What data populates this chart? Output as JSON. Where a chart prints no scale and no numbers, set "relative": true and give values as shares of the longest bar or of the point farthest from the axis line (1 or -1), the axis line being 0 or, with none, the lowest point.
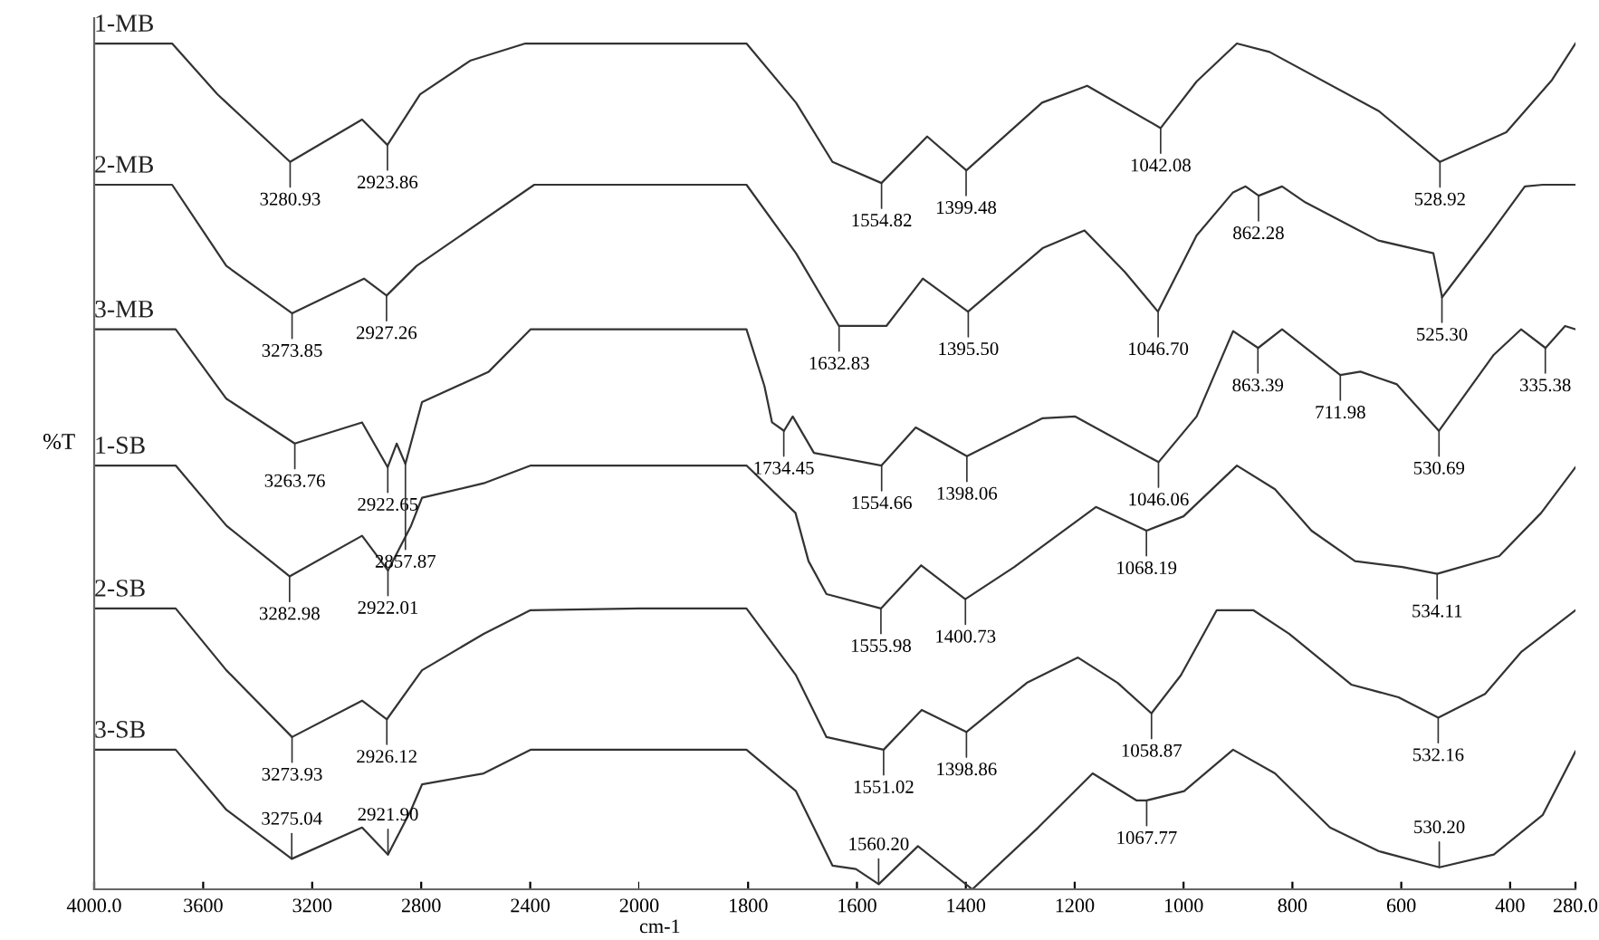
{
  "chart_data": [
    {
      "type": "line",
      "relative": true,
      "ylabel": "%T",
      "xlim": [
        4000,
        2000
      ],
      "xticks": [
        {
          "value": 4000,
          "label": "4000.0"
        },
        3600,
        3200,
        2800,
        2400,
        2000
      ],
      "grid": false,
      "legend": false,
      "marker": "none",
      "line_style": "solid",
      "series": [
        {
          "name": "1-MB",
          "color": "#333333",
          "x": [
            4000,
            3714,
            3548,
            3281,
            3017,
            2924,
            2804,
            2618,
            2418,
            2000
          ],
          "values": [
            1.0,
            1.0,
            0.94,
            0.86,
            0.91,
            0.88,
            0.94,
            0.98,
            1.0,
            1.0
          ]
        },
        {
          "name": "2-MB",
          "color": "#333333",
          "x": [
            4000,
            3714,
            3515,
            3274,
            3010,
            2927,
            2817,
            2385,
            2000
          ],
          "values": [
            0.833,
            0.833,
            0.737,
            0.681,
            0.722,
            0.702,
            0.737,
            0.833,
            0.833
          ]
        },
        {
          "name": "3-MB",
          "color": "#333333",
          "x": [
            4000,
            3701,
            3515,
            3264,
            3017,
            2923,
            2890,
            2858,
            2797,
            2552,
            2399,
            2000
          ],
          "values": [
            0.662,
            0.662,
            0.58,
            0.527,
            0.552,
            0.499,
            0.527,
            0.503,
            0.576,
            0.612,
            0.662,
            0.662
          ]
        },
        {
          "name": "1-SB",
          "color": "#333333",
          "x": [
            4000,
            3701,
            3515,
            3283,
            3017,
            2922,
            2837,
            2797,
            2571,
            2398,
            2000
          ],
          "values": [
            0.501,
            0.501,
            0.43,
            0.37,
            0.418,
            0.377,
            0.43,
            0.463,
            0.48,
            0.501,
            0.501
          ]
        },
        {
          "name": "2-SB",
          "color": "#333333",
          "x": [
            4000,
            3701,
            3515,
            3274,
            3017,
            2926,
            2797,
            2571,
            2399,
            2000
          ],
          "values": [
            0.332,
            0.332,
            0.259,
            0.18,
            0.223,
            0.201,
            0.259,
            0.302,
            0.33,
            0.332
          ]
        },
        {
          "name": "3-SB",
          "color": "#333333",
          "x": [
            4000,
            3701,
            3515,
            3275,
            3017,
            2922,
            2837,
            2797,
            2571,
            2399,
            2000
          ],
          "values": [
            0.165,
            0.165,
            0.094,
            0.036,
            0.073,
            0.041,
            0.094,
            0.124,
            0.137,
            0.165,
            0.165
          ]
        }
      ],
      "annotations": [
        {
          "text": "3280.93",
          "x": 3280.93,
          "y": 0.86
        },
        {
          "text": "2923.86",
          "x": 2923.86,
          "y": 0.88
        },
        {
          "text": "3273.85",
          "x": 3273.85,
          "y": 0.681
        },
        {
          "text": "2927.26",
          "x": 2927.26,
          "y": 0.702
        },
        {
          "text": "3263.76",
          "x": 3263.76,
          "y": 0.527
        },
        {
          "text": "2922.65",
          "x": 2922.65,
          "y": 0.499
        },
        {
          "text": "2857.87",
          "x": 2857.87,
          "y": 0.503
        },
        {
          "text": "3282.98",
          "x": 3282.98,
          "y": 0.37
        },
        {
          "text": "2922.01",
          "x": 2922.01,
          "y": 0.377
        },
        {
          "text": "3273.93",
          "x": 3273.93,
          "y": 0.18
        },
        {
          "text": "2926.12",
          "x": 2926.12,
          "y": 0.201
        },
        {
          "text": "3275.04",
          "x": 3275.04,
          "y": 0.036
        },
        {
          "text": "2921.90",
          "x": 2921.9,
          "y": 0.041
        }
      ]
    },
    {
      "type": "line",
      "relative": true,
      "xlabel": "cm-1",
      "xlim": [
        2000,
        280
      ],
      "xticks": [
        1800,
        1600,
        1400,
        1200,
        1000,
        800,
        600,
        400,
        {
          "value": 280,
          "label": "280.0"
        }
      ],
      "grid": false,
      "legend": false,
      "marker": "none",
      "line_style": "solid",
      "series": [
        {
          "color": "#333333",
          "x": [
            2000,
            1803,
            1712,
            1645,
            1555,
            1471,
            1399,
            1260,
            1177,
            1042,
            976,
            902,
            842,
            641,
            529,
            407,
            323,
            280
          ],
          "values": [
            1.0,
            1.0,
            0.93,
            0.86,
            0.835,
            0.89,
            0.85,
            0.93,
            0.95,
            0.9,
            0.955,
            1.0,
            0.99,
            0.92,
            0.86,
            0.895,
            0.957,
            1.0
          ]
        },
        {
          "color": "#333333",
          "x": [
            2000,
            1803,
            1712,
            1633,
            1546,
            1479,
            1396,
            1259,
            1182,
            1108,
            1047,
            976,
            909,
            886,
            862,
            819,
            776,
            642,
            541,
            525,
            440,
            373,
            340,
            280
          ],
          "values": [
            0.833,
            0.833,
            0.752,
            0.666,
            0.666,
            0.722,
            0.683,
            0.758,
            0.779,
            0.73,
            0.683,
            0.773,
            0.824,
            0.831,
            0.82,
            0.831,
            0.812,
            0.767,
            0.752,
            0.7,
            0.772,
            0.831,
            0.833,
            0.833
          ]
        },
        {
          "color": "#333333",
          "x": [
            2000,
            1803,
            1770,
            1756,
            1734,
            1718,
            1679,
            1555,
            1492,
            1398,
            1259,
            1199,
            1046,
            976,
            909,
            863,
            819,
            712,
            675,
            608,
            531,
            430,
            380,
            335,
            299,
            280
          ],
          "values": [
            0.662,
            0.662,
            0.595,
            0.552,
            0.542,
            0.559,
            0.516,
            0.501,
            0.546,
            0.512,
            0.557,
            0.559,
            0.505,
            0.559,
            0.66,
            0.64,
            0.662,
            0.608,
            0.612,
            0.597,
            0.542,
            0.632,
            0.662,
            0.64,
            0.666,
            0.662
          ]
        },
        {
          "color": "#333333",
          "x": [
            2000,
            1803,
            1713,
            1689,
            1656,
            1556,
            1482,
            1401,
            1311,
            1161,
            1068,
            1000,
            902,
            832,
            765,
            685,
            598,
            534,
            420,
            343,
            280
          ],
          "values": [
            0.501,
            0.501,
            0.445,
            0.388,
            0.349,
            0.332,
            0.383,
            0.343,
            0.381,
            0.452,
            0.424,
            0.441,
            0.501,
            0.473,
            0.424,
            0.388,
            0.381,
            0.373,
            0.394,
            0.445,
            0.499
          ]
        },
        {
          "color": "#333333",
          "x": [
            2000,
            1803,
            1712,
            1656,
            1551,
            1481,
            1399,
            1288,
            1194,
            1121,
            1059,
            1005,
            939,
            872,
            806,
            692,
            605,
            532,
            446,
            379,
            280
          ],
          "values": [
            0.332,
            0.332,
            0.253,
            0.18,
            0.165,
            0.212,
            0.186,
            0.244,
            0.274,
            0.244,
            0.208,
            0.253,
            0.33,
            0.33,
            0.302,
            0.242,
            0.227,
            0.203,
            0.231,
            0.281,
            0.33
          ]
        },
        {
          "color": "#333333",
          "x": [
            2000,
            1803,
            1712,
            1645,
            1602,
            1560,
            1488,
            1388,
            1267,
            1167,
            1086,
            1068,
            999,
            909,
            832,
            731,
            641,
            530,
            430,
            340,
            280
          ],
          "values": [
            0.165,
            0.165,
            0.116,
            0.028,
            0.024,
            0.006,
            0.051,
            0.0,
            0.073,
            0.137,
            0.105,
            0.105,
            0.116,
            0.165,
            0.137,
            0.073,
            0.045,
            0.026,
            0.041,
            0.088,
            0.163
          ]
        }
      ],
      "annotations": [
        {
          "text": "1554.82",
          "x": 1554.82,
          "y": 0.835
        },
        {
          "text": "1399.48",
          "x": 1399.48,
          "y": 0.85
        },
        {
          "text": "1042.08",
          "x": 1042.08,
          "y": 0.9
        },
        {
          "text": "528.92",
          "x": 528.92,
          "y": 0.86
        },
        {
          "text": "1632.83",
          "x": 1632.83,
          "y": 0.666
        },
        {
          "text": "1395.50",
          "x": 1395.5,
          "y": 0.683
        },
        {
          "text": "1046.70",
          "x": 1046.7,
          "y": 0.683
        },
        {
          "text": "862.28",
          "x": 862.28,
          "y": 0.82
        },
        {
          "text": "525.30",
          "x": 525.3,
          "y": 0.7
        },
        {
          "text": "1734.45",
          "x": 1734.45,
          "y": 0.542
        },
        {
          "text": "1554.66",
          "x": 1554.66,
          "y": 0.501
        },
        {
          "text": "1398.06",
          "x": 1398.06,
          "y": 0.512
        },
        {
          "text": "1046.06",
          "x": 1046.06,
          "y": 0.505
        },
        {
          "text": "863.39",
          "x": 863.39,
          "y": 0.64
        },
        {
          "text": "711.98",
          "x": 711.98,
          "y": 0.608
        },
        {
          "text": "530.69",
          "x": 530.69,
          "y": 0.542
        },
        {
          "text": "335.38",
          "x": 335.38,
          "y": 0.64
        },
        {
          "text": "1555.98",
          "x": 1555.98,
          "y": 0.332
        },
        {
          "text": "1400.73",
          "x": 1400.73,
          "y": 0.343
        },
        {
          "text": "1068.19",
          "x": 1068.19,
          "y": 0.424
        },
        {
          "text": "534.11",
          "x": 534.11,
          "y": 0.373
        },
        {
          "text": "1551.02",
          "x": 1551.02,
          "y": 0.165
        },
        {
          "text": "1398.86",
          "x": 1398.86,
          "y": 0.186
        },
        {
          "text": "1058.87",
          "x": 1058.87,
          "y": 0.208
        },
        {
          "text": "532.16",
          "x": 532.16,
          "y": 0.203
        },
        {
          "text": "1560.20",
          "x": 1560.2,
          "y": 0.006
        },
        {
          "text": "1067.77",
          "x": 1067.77,
          "y": 0.105
        },
        {
          "text": "530.20",
          "x": 530.2,
          "y": 0.026
        }
      ]
    }
  ]
}
